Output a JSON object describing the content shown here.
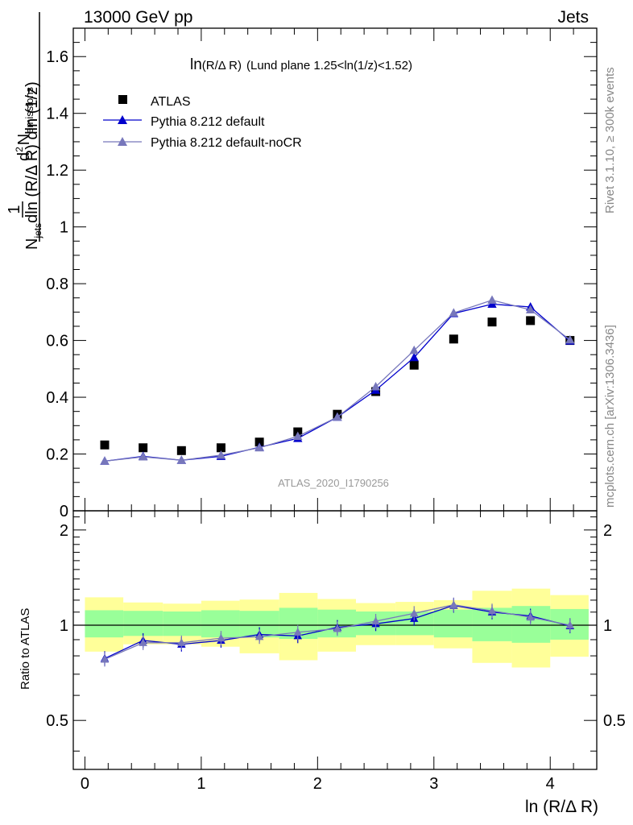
{
  "header": {
    "left": "13000 GeV pp",
    "right": "Jets"
  },
  "side_labels": {
    "rivet": "Rivet 3.1.10, ≥ 300k events",
    "mcplots": "mcplots.cern.ch [arXiv:1306.3436]"
  },
  "chart_data": {
    "type": "scatter",
    "title_main": "ln",
    "title_small": "(R/Δ R)",
    "title_rest": "(Lund plane 1.25<ln(1/z)<1.52)",
    "watermark": "ATLAS_2020_I1790256",
    "xlabel": "ln (R/Δ R)",
    "ylabel": "1/N_jets dln(R/ΔR) · d²N_emissions / dln(1/z)",
    "ylabel_parts": {
      "num_one": "1",
      "num_d": "d",
      "num_sup": "2",
      "num_N": "N",
      "num_sub": "emissions",
      "den_N": "N",
      "den_sub": "jets",
      "den_rest": "dln (R/Δ R) dln (1/z)"
    },
    "ratio_ylabel": "Ratio to ATLAS",
    "xlim": [
      -0.1,
      4.4
    ],
    "ylim": [
      0,
      1.7
    ],
    "ratio_ylim": [
      0.35,
      2.3
    ],
    "x_ticks": [
      "0",
      "1",
      "2",
      "3",
      "4"
    ],
    "y_ticks": [
      "0",
      "0.2",
      "0.4",
      "0.6",
      "0.8",
      "1",
      "1.2",
      "1.4",
      "1.6"
    ],
    "ratio_y_ticks": [
      "0.5",
      "1",
      "2"
    ],
    "x": [
      0.17,
      0.5,
      0.83,
      1.17,
      1.5,
      1.83,
      2.17,
      2.5,
      2.83,
      3.17,
      3.5,
      3.83,
      4.17
    ],
    "x_edges": [
      0.0,
      0.33,
      0.67,
      1.0,
      1.33,
      1.67,
      2.0,
      2.33,
      2.67,
      3.0,
      3.33,
      3.67,
      4.0,
      4.33
    ],
    "series": [
      {
        "name": "ATLAS",
        "color": "#000000",
        "marker": "square",
        "values": [
          0.232,
          0.222,
          0.212,
          0.222,
          0.242,
          0.278,
          0.34,
          0.42,
          0.513,
          0.605,
          0.665,
          0.67,
          0.6
        ],
        "ratio": [
          1,
          1,
          1,
          1,
          1,
          1,
          1,
          1,
          1,
          1,
          1,
          1,
          1
        ]
      },
      {
        "name": "Pythia 8.212 default",
        "color": "#0000cc",
        "marker": "triangle",
        "values": [
          0.175,
          0.192,
          0.178,
          0.192,
          0.224,
          0.255,
          0.33,
          0.425,
          0.54,
          0.695,
          0.728,
          0.718,
          0.598
        ],
        "ratio": [
          0.785,
          0.895,
          0.87,
          0.895,
          0.935,
          0.925,
          0.985,
          1.01,
          1.05,
          1.155,
          1.1,
          1.07,
          0.995
        ]
      },
      {
        "name": "Pythia 8.212 default-noCR",
        "color": "#7777bb",
        "marker": "triangle",
        "values": [
          0.175,
          0.19,
          0.178,
          0.196,
          0.222,
          0.262,
          0.33,
          0.437,
          0.565,
          0.697,
          0.742,
          0.708,
          0.602
        ],
        "ratio": [
          0.78,
          0.88,
          0.88,
          0.91,
          0.92,
          0.95,
          0.975,
          1.03,
          1.09,
          1.16,
          1.11,
          1.06,
          1.0
        ]
      }
    ],
    "ratio_band_inner": {
      "color": "#99ff99",
      "low": [
        0.915,
        0.925,
        0.925,
        0.915,
        0.915,
        0.905,
        0.915,
        0.93,
        0.93,
        0.915,
        0.89,
        0.88,
        0.9
      ],
      "high": [
        1.115,
        1.11,
        1.105,
        1.115,
        1.11,
        1.135,
        1.12,
        1.105,
        1.105,
        1.12,
        1.135,
        1.15,
        1.125
      ]
    },
    "ratio_band_outer": {
      "color": "#ffff99",
      "low": [
        0.825,
        0.87,
        0.87,
        0.855,
        0.815,
        0.775,
        0.825,
        0.865,
        0.865,
        0.845,
        0.76,
        0.735,
        0.795
      ],
      "high": [
        1.225,
        1.18,
        1.17,
        1.195,
        1.205,
        1.265,
        1.21,
        1.175,
        1.185,
        1.2,
        1.285,
        1.305,
        1.245
      ]
    }
  }
}
